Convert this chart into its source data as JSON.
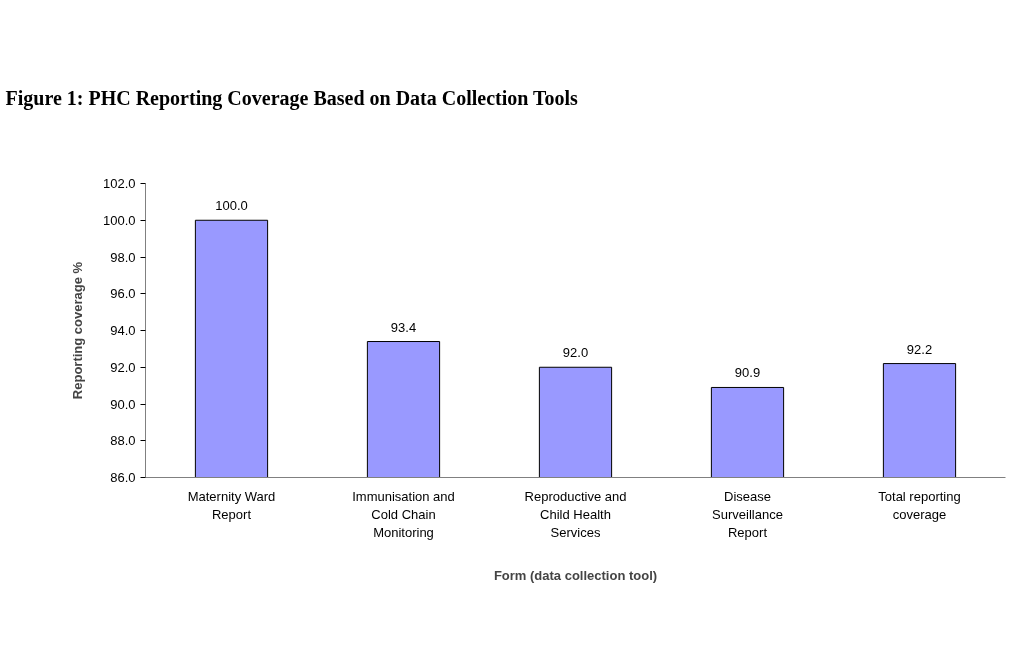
{
  "chart_data": {
    "type": "bar",
    "title": "Figure 1: PHC Reporting Coverage Based on Data Collection Tools",
    "xlabel": "Form (data collection tool)",
    "ylabel": "Reporting coverage %",
    "categories": [
      "Maternity Ward Report",
      "Immunisation and Cold Chain Monitoring",
      "Reproductive and Child Health Services",
      "Disease Surveillance Report",
      "Total reporting coverage"
    ],
    "values": [
      100.0,
      93.4,
      92.0,
      90.9,
      92.2
    ],
    "value_labels": [
      "100.0",
      "93.4",
      "92.0",
      "90.9",
      "92.2"
    ],
    "color": "#9999ff",
    "ylim": [
      86,
      102
    ],
    "yticks": [
      {
        "value": 86,
        "label": "86.0"
      },
      {
        "value": 88,
        "label": "88.0"
      },
      {
        "value": 90,
        "label": "90.0"
      },
      {
        "value": 92,
        "label": "92.0"
      },
      {
        "value": 94,
        "label": "94.0"
      },
      {
        "value": 96,
        "label": "96.0"
      },
      {
        "value": 98,
        "label": "98.0"
      },
      {
        "value": 100,
        "label": "100.0"
      },
      {
        "value": 102,
        "label": "102.0"
      }
    ],
    "grid": false
  }
}
